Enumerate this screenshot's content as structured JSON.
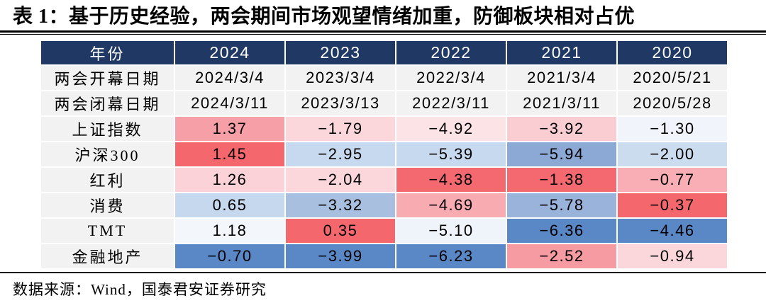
{
  "title": "表 1：基于历史经验，两会期间市场观望情绪加重，防御板块相对占优",
  "source": "数据来源：Wind，国泰君安证券研究",
  "colors": {
    "header_bg": "#1F3864",
    "header_text": "#FFFFFF",
    "label_bg": "#F2F2F2",
    "strong_red": "#F4676D",
    "strong_blue": "#5A87C5",
    "rule": "#000000",
    "page_bg": "#FFFFFF"
  },
  "table": {
    "header": [
      "年份",
      "2024",
      "2023",
      "2022",
      "2021",
      "2020"
    ],
    "rows": [
      {
        "label": "两会开幕日期",
        "cells": [
          {
            "v": "2024/3/4",
            "bg": "#F2F2F2"
          },
          {
            "v": "2023/3/4",
            "bg": "#F2F2F2"
          },
          {
            "v": "2022/3/4",
            "bg": "#F2F2F2"
          },
          {
            "v": "2021/3/4",
            "bg": "#F2F2F2"
          },
          {
            "v": "2020/5/21",
            "bg": "#F2F2F2"
          }
        ]
      },
      {
        "label": "两会闭幕日期",
        "cells": [
          {
            "v": "2024/3/11",
            "bg": "#F2F2F2"
          },
          {
            "v": "2023/3/13",
            "bg": "#F2F2F2"
          },
          {
            "v": "2022/3/11",
            "bg": "#F2F2F2"
          },
          {
            "v": "2021/3/11",
            "bg": "#F2F2F2"
          },
          {
            "v": "2020/5/28",
            "bg": "#F2F2F2"
          }
        ]
      },
      {
        "label": "上证指数",
        "cells": [
          {
            "v": "1.37",
            "bg": "#F79FA6"
          },
          {
            "v": "−1.79",
            "bg": "#FBD6DB"
          },
          {
            "v": "−4.92",
            "bg": "#FCE3E6"
          },
          {
            "v": "−3.92",
            "bg": "#FACDD2"
          },
          {
            "v": "−1.30",
            "bg": "#F1F4FA"
          }
        ]
      },
      {
        "label": "沪深300",
        "cells": [
          {
            "v": "1.45",
            "bg": "#F4676D"
          },
          {
            "v": "−2.95",
            "bg": "#C7D9EE"
          },
          {
            "v": "−5.39",
            "bg": "#C7D9EE"
          },
          {
            "v": "−5.94",
            "bg": "#8CA8D4"
          },
          {
            "v": "−2.00",
            "bg": "#CBDCEF"
          }
        ]
      },
      {
        "label": "红利",
        "cells": [
          {
            "v": "1.26",
            "bg": "#FBD2D7"
          },
          {
            "v": "−2.04",
            "bg": "#FBD6DB"
          },
          {
            "v": "−4.38",
            "bg": "#F4696F"
          },
          {
            "v": "−1.38",
            "bg": "#F4696F"
          },
          {
            "v": "−0.77",
            "bg": "#F8AEB4"
          }
        ]
      },
      {
        "label": "消费",
        "cells": [
          {
            "v": "0.65",
            "bg": "#C5D8EE"
          },
          {
            "v": "−3.32",
            "bg": "#A9BFDF"
          },
          {
            "v": "−4.69",
            "bg": "#F8ACB2"
          },
          {
            "v": "−5.78",
            "bg": "#9AB3DA"
          },
          {
            "v": "−0.37",
            "bg": "#F4676D"
          }
        ]
      },
      {
        "label": "TMT",
        "cells": [
          {
            "v": "1.18",
            "bg": "#F3F6FA"
          },
          {
            "v": "0.35",
            "bg": "#F4676D"
          },
          {
            "v": "−5.10",
            "bg": "#EFF3FA"
          },
          {
            "v": "−6.36",
            "bg": "#5A87C5"
          },
          {
            "v": "−4.46",
            "bg": "#5A87C5"
          }
        ]
      },
      {
        "label": "金融地产",
        "cells": [
          {
            "v": "−0.70",
            "bg": "#5A87C5"
          },
          {
            "v": "−3.99",
            "bg": "#5A87C5"
          },
          {
            "v": "−6.23",
            "bg": "#5A87C5"
          },
          {
            "v": "−2.52",
            "bg": "#F59BA1"
          },
          {
            "v": "−0.94",
            "bg": "#FBD7DC"
          }
        ]
      }
    ]
  },
  "chart_data": {
    "type": "table",
    "title": "表 1：基于历史经验，两会期间市场观望情绪加重，防御板块相对占优",
    "columns": [
      "2024",
      "2023",
      "2022",
      "2021",
      "2020"
    ],
    "rows": [
      {
        "name": "两会开幕日期",
        "values": [
          "2024/3/4",
          "2023/3/4",
          "2022/3/4",
          "2021/3/4",
          "2020/5/21"
        ]
      },
      {
        "name": "两会闭幕日期",
        "values": [
          "2024/3/11",
          "2023/3/13",
          "2022/3/11",
          "2021/3/11",
          "2020/5/28"
        ]
      },
      {
        "name": "上证指数",
        "values": [
          1.37,
          -1.79,
          -4.92,
          -3.92,
          -1.3
        ]
      },
      {
        "name": "沪深300",
        "values": [
          1.45,
          -2.95,
          -5.39,
          -5.94,
          -2.0
        ]
      },
      {
        "name": "红利",
        "values": [
          1.26,
          -2.04,
          -4.38,
          -1.38,
          -0.77
        ]
      },
      {
        "name": "消费",
        "values": [
          0.65,
          -3.32,
          -4.69,
          -5.78,
          -0.37
        ]
      },
      {
        "name": "TMT",
        "values": [
          1.18,
          0.35,
          -5.1,
          -6.36,
          -4.46
        ]
      },
      {
        "name": "金融地产",
        "values": [
          -0.7,
          -3.99,
          -6.23,
          -2.52,
          -0.94
        ]
      }
    ],
    "source": "数据来源：Wind，国泰君安证券研究",
    "style": "heatmap table, per-column shading: red = relatively high value, blue = relatively low value"
  }
}
